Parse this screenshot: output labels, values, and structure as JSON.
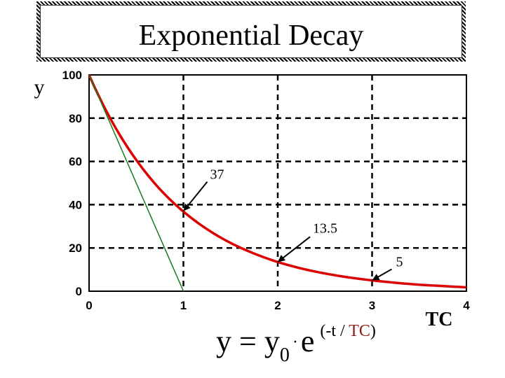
{
  "chart_data": {
    "type": "line",
    "title": "Exponential Decay",
    "ylabel": "y",
    "xlabel": "TC",
    "xlim": [
      0,
      4
    ],
    "ylim": [
      0,
      100
    ],
    "x_ticks": [
      0,
      1,
      2,
      3,
      4
    ],
    "y_ticks": [
      0,
      20,
      40,
      60,
      80,
      100
    ],
    "grid": "dashed",
    "series": [
      {
        "color": "#dd0000",
        "x": [
          0,
          0.25,
          0.5,
          0.75,
          1,
          1.25,
          1.5,
          1.75,
          2,
          2.25,
          2.5,
          2.75,
          3,
          3.25,
          3.5,
          3.75,
          4
        ],
        "y": [
          100,
          77.9,
          60.7,
          47.2,
          36.8,
          28.7,
          22.3,
          17.4,
          13.5,
          10.5,
          8.2,
          6.4,
          5.0,
          3.9,
          3.0,
          2.4,
          1.8
        ]
      },
      {
        "color": "#1a7a1a",
        "x": [
          0,
          1
        ],
        "y": [
          100,
          0
        ]
      }
    ],
    "annotations": [
      {
        "text": "37",
        "x": 1,
        "y": 37
      },
      {
        "text": "13.5",
        "x": 2,
        "y": 13.5
      },
      {
        "text": "5",
        "x": 3,
        "y": 5
      }
    ]
  },
  "formula": {
    "lhs": "y = y",
    "sub": "0",
    "dot": "·",
    "base": "e",
    "exp_open": "(-t / ",
    "exp_tc": "TC",
    "exp_close": ")"
  }
}
